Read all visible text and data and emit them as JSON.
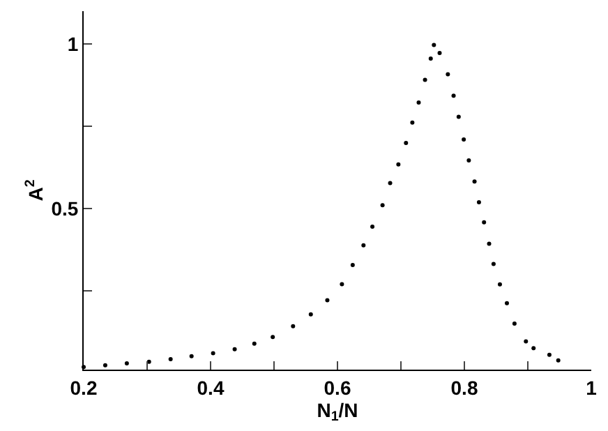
{
  "chart_data": {
    "type": "scatter",
    "xlabel": "N$_{1}$/N",
    "ylabel": "A$^{2}$",
    "marker": "circle",
    "legend": false,
    "xlim": [
      0.2,
      1
    ],
    "ylim": [
      0.01,
      1.1
    ],
    "xticks": [
      0.2,
      {
        "value": 0.3,
        "label": null
      },
      0.4,
      {
        "value": 0.5,
        "label": null
      },
      0.6,
      {
        "value": 0.7,
        "label": null
      },
      0.8,
      {
        "value": 0.9,
        "label": null
      },
      1
    ],
    "yticks": [
      {
        "value": 0.25,
        "label": null
      },
      0.5,
      {
        "value": 0.75,
        "label": null
      },
      1
    ],
    "series": [
      {
        "color": "#000000",
        "x": [
          0.2,
          0.234,
          0.268,
          0.303,
          0.337,
          0.37,
          0.404,
          0.438,
          0.469,
          0.498,
          0.53,
          0.558,
          0.584,
          0.607,
          0.624,
          0.641,
          0.655,
          0.671,
          0.683,
          0.696,
          0.708,
          0.718,
          0.728,
          0.738,
          0.747,
          0.752,
          0.761,
          0.774,
          0.783,
          0.791,
          0.799,
          0.807,
          0.816,
          0.823,
          0.831,
          0.839,
          0.846,
          0.856,
          0.867,
          0.879,
          0.897,
          0.909,
          0.934,
          0.948
        ],
        "values": [
          0.018,
          0.023,
          0.029,
          0.034,
          0.042,
          0.051,
          0.06,
          0.072,
          0.089,
          0.109,
          0.142,
          0.178,
          0.221,
          0.27,
          0.328,
          0.388,
          0.445,
          0.51,
          0.577,
          0.634,
          0.699,
          0.761,
          0.822,
          0.891,
          0.956,
          0.997,
          0.973,
          0.908,
          0.843,
          0.779,
          0.71,
          0.646,
          0.582,
          0.519,
          0.458,
          0.393,
          0.331,
          0.269,
          0.212,
          0.15,
          0.096,
          0.075,
          0.055,
          0.038
        ]
      }
    ]
  }
}
